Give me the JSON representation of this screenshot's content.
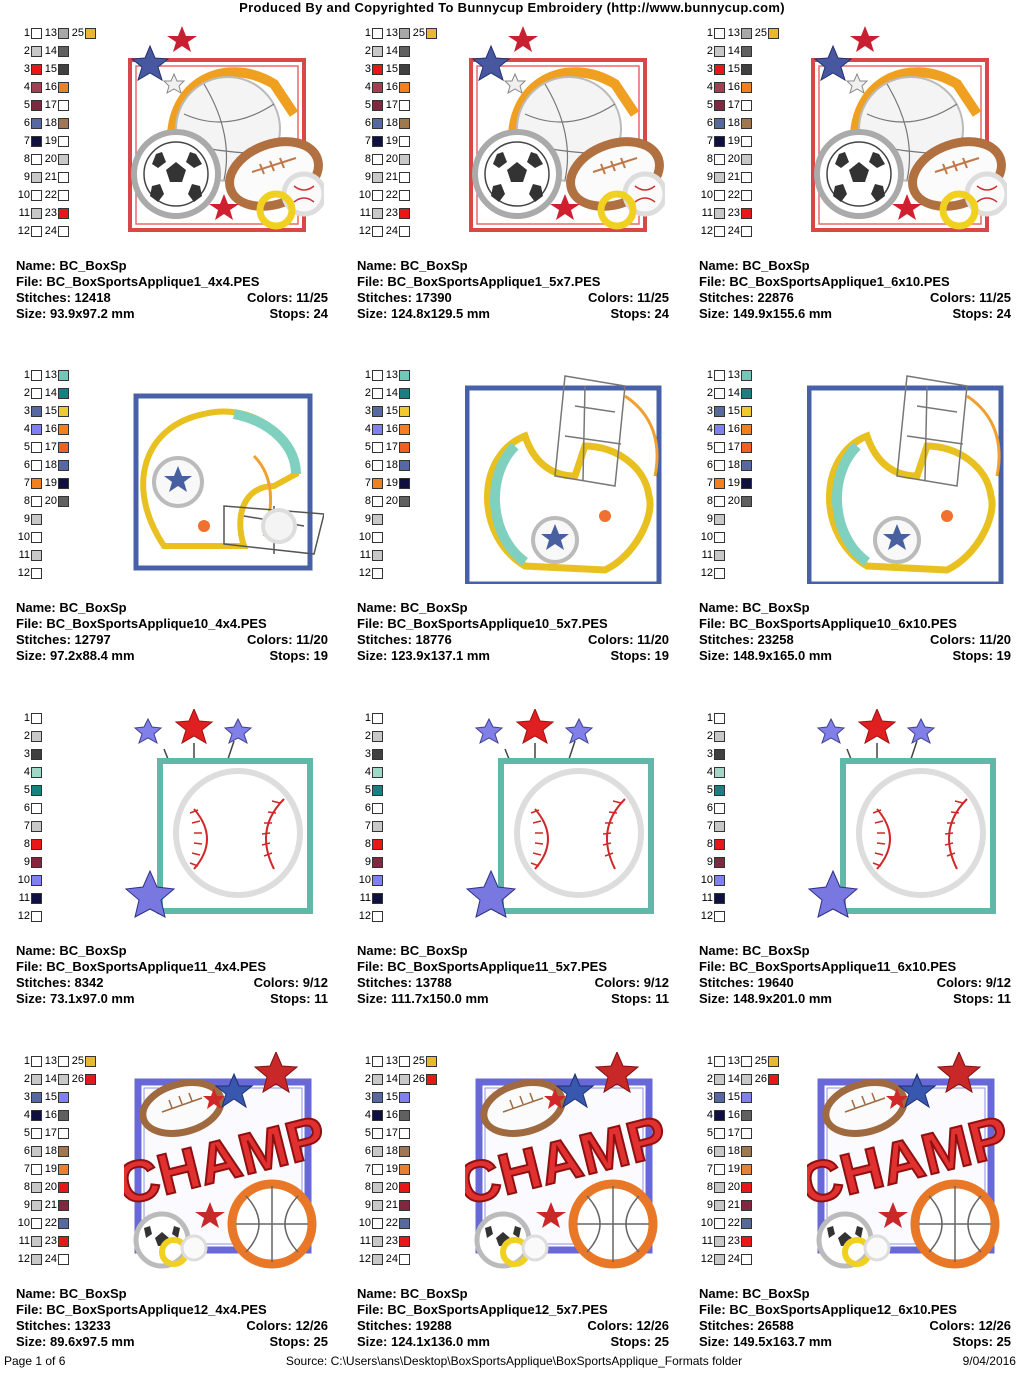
{
  "header": {
    "title": "Produced By and Copyrighted To Bunnycup Embroidery (http://www.bunnycup.com)"
  },
  "labels": {
    "name": "Name:",
    "file": "File:",
    "stitches": "Stitches:",
    "colors": "Colors:",
    "size": "Size:",
    "stops": "Stops:"
  },
  "palettes": {
    "p1": [
      [
        "#ffffff",
        "#a8a8a8",
        "#e8b830"
      ],
      [
        "#c8c8c8",
        "#606060",
        null
      ],
      [
        "#e81818",
        "#404040",
        null
      ],
      [
        "#a04050",
        "#f08020",
        null
      ],
      [
        "#802840",
        "#ffffff",
        null
      ],
      [
        "#5868a0",
        "#a07850",
        null
      ],
      [
        "#101040",
        "#ffffff",
        null
      ],
      [
        "#ffffff",
        "#c8c8c8",
        null
      ],
      [
        "#c8c8c8",
        "#ffffff",
        null
      ],
      [
        "#ffffff",
        "#ffffff",
        null
      ],
      [
        "#c8c8c8",
        "#e81818",
        null
      ],
      [
        "#ffffff",
        "#ffffff",
        null
      ]
    ],
    "p10": [
      [
        "#ffffff",
        "#70c8b8"
      ],
      [
        "#ffffff",
        "#188080"
      ],
      [
        "#5868a0",
        "#f0c830"
      ],
      [
        "#8080f0",
        "#f08020"
      ],
      [
        "#ffffff",
        "#f06020"
      ],
      [
        "#ffffff",
        "#5868a0"
      ],
      [
        "#f08020",
        "#101040"
      ],
      [
        "#ffffff",
        "#606060"
      ],
      [
        "#c8c8c8",
        null
      ],
      [
        "#ffffff",
        null
      ],
      [
        "#c8c8c8",
        null
      ],
      [
        "#ffffff",
        null
      ]
    ],
    "p11": [
      [
        "#ffffff"
      ],
      [
        "#c8c8c8"
      ],
      [
        "#404040"
      ],
      [
        "#a0d8c8"
      ],
      [
        "#188080"
      ],
      [
        "#ffffff"
      ],
      [
        "#c8c8c8"
      ],
      [
        "#e81818"
      ],
      [
        "#802840"
      ],
      [
        "#8080f0"
      ],
      [
        "#101040"
      ],
      [
        "#ffffff"
      ]
    ],
    "p12": [
      [
        "#ffffff",
        "#ffffff",
        "#e8b830"
      ],
      [
        "#c8c8c8",
        "#c8c8c8",
        "#e81818"
      ],
      [
        "#5868a0",
        "#8080f0",
        null
      ],
      [
        "#101040",
        "#606060",
        null
      ],
      [
        "#ffffff",
        "#ffffff",
        null
      ],
      [
        "#c8c8c8",
        "#a07850",
        null
      ],
      [
        "#ffffff",
        "#e88030",
        null
      ],
      [
        "#c8c8c8",
        "#e81818",
        null
      ],
      [
        "#c8c8c8",
        "#802840",
        null
      ],
      [
        "#ffffff",
        "#5868a0",
        null
      ],
      [
        "#c8c8c8",
        "#e81818",
        null
      ],
      [
        "#c8c8c8",
        "#ffffff",
        null
      ]
    ]
  },
  "rows": [
    {
      "palette": "p1",
      "art": "sports",
      "cards": [
        {
          "name": "BC_BoxSp",
          "file": "BC_BoxSportsApplique1_4x4.PES",
          "stitches": "12418",
          "colors": "11/25",
          "size": "93.9x97.2 mm",
          "stops": "24"
        },
        {
          "name": "BC_BoxSp",
          "file": "BC_BoxSportsApplique1_5x7.PES",
          "stitches": "17390",
          "colors": "11/25",
          "size": "124.8x129.5 mm",
          "stops": "24"
        },
        {
          "name": "BC_BoxSp",
          "file": "BC_BoxSportsApplique1_6x10.PES",
          "stitches": "22876",
          "colors": "11/25",
          "size": "149.9x155.6 mm",
          "stops": "24"
        }
      ]
    },
    {
      "palette": "p10",
      "art": "helmet",
      "cards": [
        {
          "name": "BC_BoxSp",
          "file": "BC_BoxSportsApplique10_4x4.PES",
          "stitches": "12797",
          "colors": "11/20",
          "size": "97.2x88.4 mm",
          "stops": "19"
        },
        {
          "name": "BC_BoxSp",
          "file": "BC_BoxSportsApplique10_5x7.PES",
          "stitches": "18776",
          "colors": "11/20",
          "size": "123.9x137.1 mm",
          "stops": "19"
        },
        {
          "name": "BC_BoxSp",
          "file": "BC_BoxSportsApplique10_6x10.PES",
          "stitches": "23258",
          "colors": "11/20",
          "size": "148.9x165.0 mm",
          "stops": "19"
        }
      ]
    },
    {
      "palette": "p11",
      "art": "baseball",
      "cards": [
        {
          "name": "BC_BoxSp",
          "file": "BC_BoxSportsApplique11_4x4.PES",
          "stitches": "8342",
          "colors": "9/12",
          "size": "73.1x97.0 mm",
          "stops": "11"
        },
        {
          "name": "BC_BoxSp",
          "file": "BC_BoxSportsApplique11_5x7.PES",
          "stitches": "13788",
          "colors": "9/12",
          "size": "111.7x150.0 mm",
          "stops": "11"
        },
        {
          "name": "BC_BoxSp",
          "file": "BC_BoxSportsApplique11_6x10.PES",
          "stitches": "19640",
          "colors": "9/12",
          "size": "148.9x201.0 mm",
          "stops": "11"
        }
      ]
    },
    {
      "palette": "p12",
      "art": "champ",
      "cards": [
        {
          "name": "BC_BoxSp",
          "file": "BC_BoxSportsApplique12_4x4.PES",
          "stitches": "13233",
          "colors": "12/26",
          "size": "89.6x97.5 mm",
          "stops": "25"
        },
        {
          "name": "BC_BoxSp",
          "file": "BC_BoxSportsApplique12_5x7.PES",
          "stitches": "19288",
          "colors": "12/26",
          "size": "124.1x136.0 mm",
          "stops": "25"
        },
        {
          "name": "BC_BoxSp",
          "file": "BC_BoxSportsApplique12_6x10.PES",
          "stitches": "26588",
          "colors": "12/26",
          "size": "149.5x163.7 mm",
          "stops": "25"
        }
      ]
    }
  ],
  "art_text": {
    "champ": "CHAMP"
  },
  "footer": {
    "page": "Page 1 of 6",
    "source": "Source: C:\\Users\\ans\\Desktop\\BoxSportsApplique\\BoxSportsApplique_Formats folder",
    "date": "9/04/2016"
  }
}
